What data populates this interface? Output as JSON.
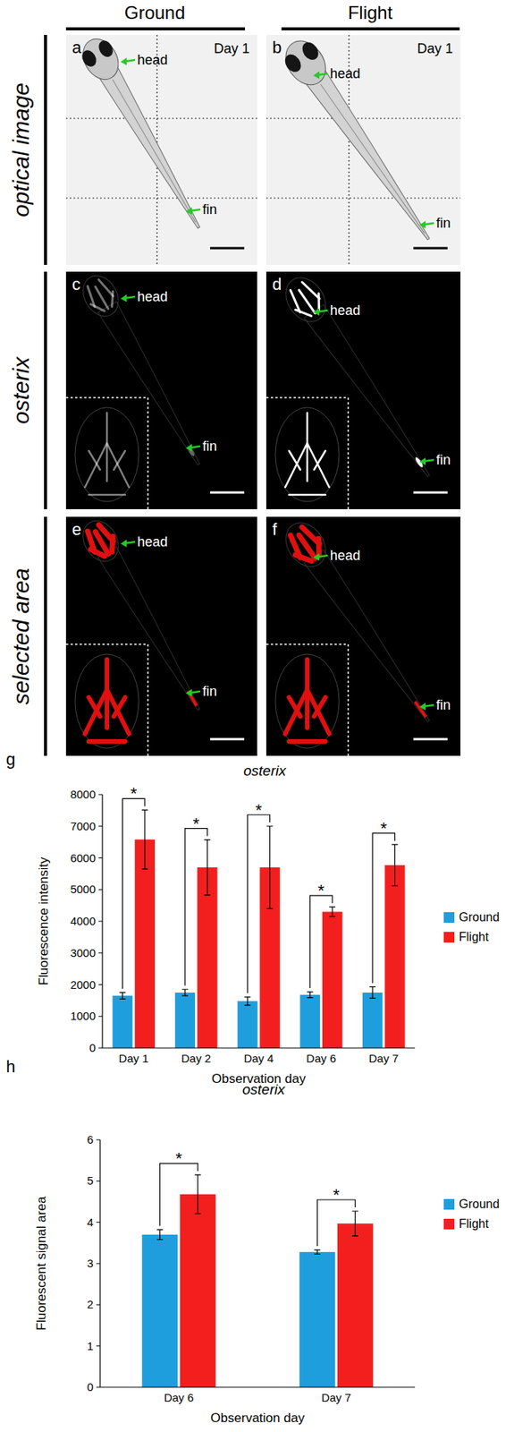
{
  "figure": {
    "columns": [
      "Ground",
      "Flight"
    ],
    "rows": [
      "optical image",
      "osterix",
      "selected area"
    ],
    "panels": [
      {
        "letter": "a",
        "day": "Day 1",
        "labels": [
          "head",
          "fin"
        ]
      },
      {
        "letter": "b",
        "day": "Day 1",
        "labels": [
          "head",
          "fin"
        ]
      },
      {
        "letter": "c",
        "labels": [
          "head",
          "fin"
        ]
      },
      {
        "letter": "d",
        "labels": [
          "head",
          "fin"
        ]
      },
      {
        "letter": "e",
        "labels": [
          "head",
          "fin"
        ]
      },
      {
        "letter": "f",
        "labels": [
          "head",
          "fin"
        ]
      }
    ],
    "chart_letters": [
      "g",
      "h"
    ]
  },
  "chart_data": [
    {
      "type": "bar",
      "title": "osterix",
      "x_label": "Observation day",
      "y_label": "Fluorescence intensity",
      "categories": [
        "Day 1",
        "Day 2",
        "Day 4",
        "Day 6",
        "Day 7"
      ],
      "series": [
        {
          "name": "Ground",
          "color": "#1f9ede",
          "values": [
            1650,
            1750,
            1480,
            1680,
            1750
          ],
          "errors": [
            100,
            100,
            130,
            90,
            180
          ]
        },
        {
          "name": "Flight",
          "color": "#f31f1f",
          "values": [
            6580,
            5700,
            5700,
            4300,
            5770
          ],
          "errors": [
            930,
            870,
            1300,
            150,
            650
          ]
        }
      ],
      "ylim": [
        0,
        8000
      ],
      "yticks": [
        0,
        1000,
        2000,
        3000,
        4000,
        5000,
        6000,
        7000,
        8000
      ],
      "grid": false,
      "legend": "right",
      "annotations": [
        "*",
        "*",
        "*",
        "*",
        "*"
      ]
    },
    {
      "type": "bar",
      "title": "osterix",
      "x_label": "Observation day",
      "y_label": "Fluorescent signal area",
      "categories": [
        "Day 6",
        "Day 7"
      ],
      "series": [
        {
          "name": "Ground",
          "color": "#1f9ede",
          "values": [
            3.7,
            3.28
          ],
          "errors": [
            0.12,
            0.05
          ]
        },
        {
          "name": "Flight",
          "color": "#f31f1f",
          "values": [
            4.68,
            3.97
          ],
          "errors": [
            0.47,
            0.3
          ]
        }
      ],
      "ylim": [
        0,
        6
      ],
      "yticks": [
        0,
        1,
        2,
        3,
        4,
        5,
        6
      ],
      "grid": false,
      "legend": "right",
      "annotations": [
        "*",
        "*"
      ]
    }
  ]
}
